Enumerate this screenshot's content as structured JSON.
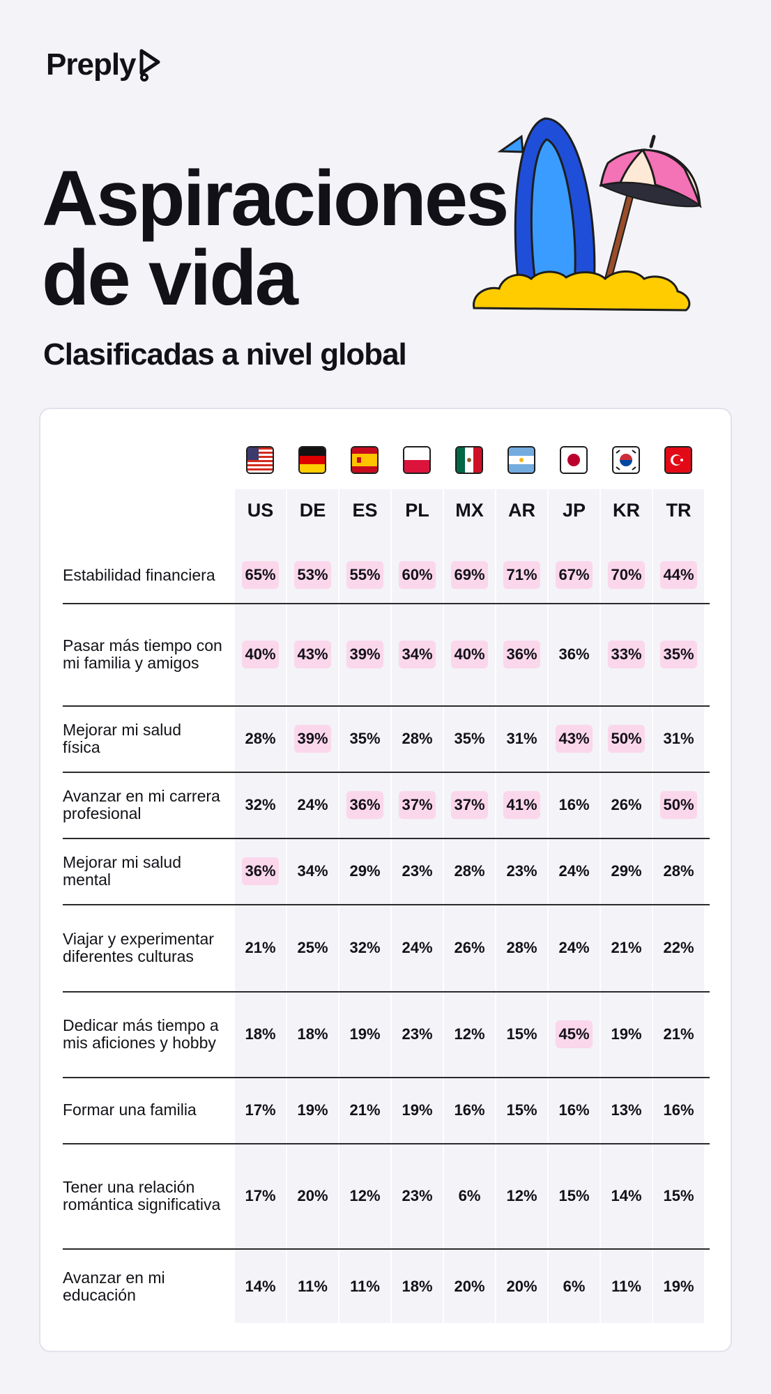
{
  "brand": {
    "name": "Preply"
  },
  "title": "Aspiraciones de vida",
  "subtitle": "Clasificadas a nivel global",
  "colors": {
    "highlight": "#fbd7ec",
    "column": "#f3f3f8",
    "background": "#f3f3f8"
  },
  "chart_data": {
    "type": "table",
    "title": "Aspiraciones de vida",
    "subtitle": "Clasificadas a nivel global",
    "columns": [
      {
        "code": "US",
        "flag": "us-flag-icon"
      },
      {
        "code": "DE",
        "flag": "de-flag-icon"
      },
      {
        "code": "ES",
        "flag": "es-flag-icon"
      },
      {
        "code": "PL",
        "flag": "pl-flag-icon"
      },
      {
        "code": "MX",
        "flag": "mx-flag-icon"
      },
      {
        "code": "AR",
        "flag": "ar-flag-icon"
      },
      {
        "code": "JP",
        "flag": "jp-flag-icon"
      },
      {
        "code": "KR",
        "flag": "kr-flag-icon"
      },
      {
        "code": "TR",
        "flag": "tr-flag-icon"
      }
    ],
    "rows": [
      {
        "label": "Estabilidad financiera",
        "values": [
          "65%",
          "53%",
          "55%",
          "60%",
          "69%",
          "71%",
          "67%",
          "70%",
          "44%"
        ],
        "highlighted": [
          true,
          true,
          true,
          true,
          true,
          true,
          true,
          true,
          true
        ]
      },
      {
        "label": "Pasar más tiempo con mi familia y amigos",
        "values": [
          "40%",
          "43%",
          "39%",
          "34%",
          "40%",
          "36%",
          "36%",
          "33%",
          "35%"
        ],
        "highlighted": [
          true,
          true,
          true,
          true,
          true,
          true,
          false,
          true,
          true
        ]
      },
      {
        "label": "Mejorar mi salud física",
        "values": [
          "28%",
          "39%",
          "35%",
          "28%",
          "35%",
          "31%",
          "43%",
          "50%",
          "31%"
        ],
        "highlighted": [
          false,
          true,
          false,
          false,
          false,
          false,
          true,
          true,
          false
        ]
      },
      {
        "label": "Avanzar en mi carrera profesional",
        "values": [
          "32%",
          "24%",
          "36%",
          "37%",
          "37%",
          "41%",
          "16%",
          "26%",
          "50%"
        ],
        "highlighted": [
          false,
          false,
          true,
          true,
          true,
          true,
          false,
          false,
          true
        ]
      },
      {
        "label": "Mejorar mi salud mental",
        "values": [
          "36%",
          "34%",
          "29%",
          "23%",
          "28%",
          "23%",
          "24%",
          "29%",
          "28%"
        ],
        "highlighted": [
          true,
          false,
          false,
          false,
          false,
          false,
          false,
          false,
          false
        ]
      },
      {
        "label": "Viajar y experimentar diferentes culturas",
        "values": [
          "21%",
          "25%",
          "32%",
          "24%",
          "26%",
          "28%",
          "24%",
          "21%",
          "22%"
        ],
        "highlighted": [
          false,
          false,
          false,
          false,
          false,
          false,
          false,
          false,
          false
        ]
      },
      {
        "label": "Dedicar más tiempo a mis aficiones y hobby",
        "values": [
          "18%",
          "18%",
          "19%",
          "23%",
          "12%",
          "15%",
          "45%",
          "19%",
          "21%"
        ],
        "highlighted": [
          false,
          false,
          false,
          false,
          false,
          false,
          true,
          false,
          false
        ]
      },
      {
        "label": "Formar una familia",
        "values": [
          "17%",
          "19%",
          "21%",
          "19%",
          "16%",
          "15%",
          "16%",
          "13%",
          "16%"
        ],
        "highlighted": [
          false,
          false,
          false,
          false,
          false,
          false,
          false,
          false,
          false
        ]
      },
      {
        "label": "Tener una relación romántica significativa",
        "values": [
          "17%",
          "20%",
          "12%",
          "23%",
          "6%",
          "12%",
          "15%",
          "14%",
          "15%"
        ],
        "highlighted": [
          false,
          false,
          false,
          false,
          false,
          false,
          false,
          false,
          false
        ]
      },
      {
        "label": "Avanzar en mi educación",
        "values": [
          "14%",
          "11%",
          "11%",
          "18%",
          "20%",
          "20%",
          "6%",
          "11%",
          "19%"
        ],
        "highlighted": [
          false,
          false,
          false,
          false,
          false,
          false,
          false,
          false,
          false
        ]
      }
    ]
  }
}
